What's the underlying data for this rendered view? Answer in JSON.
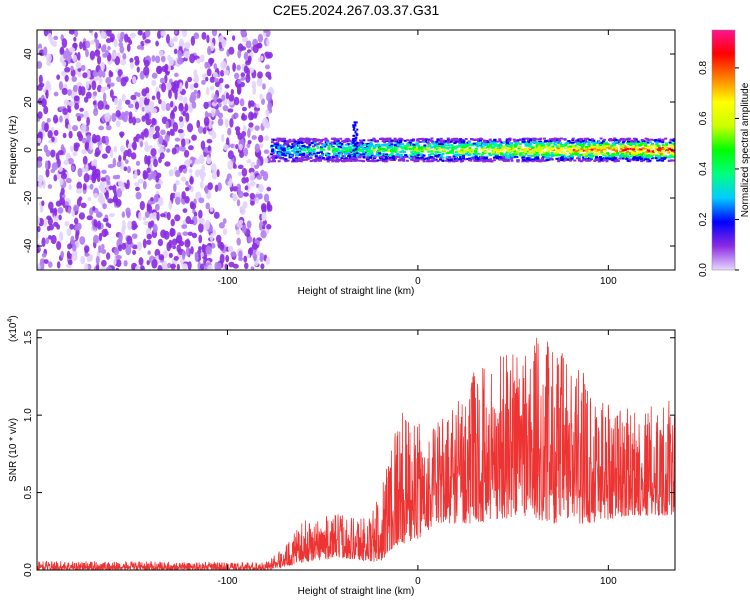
{
  "title": "C2E5.2024.267.03.37.G31",
  "chart_data": [
    {
      "type": "heatmap",
      "xlabel": "Height of straight line (km)",
      "ylabel": "Frequency (Hz)",
      "xlim": [
        -200,
        135
      ],
      "ylim": [
        -50,
        50
      ],
      "x_ticks": [
        -100,
        0,
        100
      ],
      "x_tick_labels": [
        "-100",
        "0",
        "100"
      ],
      "y_ticks": [
        -40,
        -20,
        0,
        20,
        40
      ],
      "y_tick_labels": [
        "-40",
        "-20",
        "0",
        "20",
        "40"
      ],
      "colorbar": {
        "label": "Normalized spectral amplitude",
        "range": [
          0,
          0.95
        ],
        "ticks": [
          0.0,
          0.2,
          0.4,
          0.6,
          0.8
        ],
        "tick_labels": [
          "0.0",
          "0.2",
          "0.4",
          "0.6",
          "0.8"
        ],
        "colors": [
          "#e8d8ff",
          "#8a2be2",
          "#0000ff",
          "#00ccff",
          "#00ff80",
          "#00ff00",
          "#ccff00",
          "#ffff00",
          "#ff8000",
          "#ff0000",
          "#ff1493"
        ]
      },
      "regions": [
        {
          "x_range": [
            -200,
            -77
          ],
          "freq_range": [
            -50,
            50
          ],
          "amplitude": 0.1
        },
        {
          "x_range": [
            -77,
            135
          ],
          "center_freq": 0,
          "half_width_hz": 3,
          "amplitude_range": [
            0.3,
            0.9
          ]
        },
        {
          "x_range": [
            -35,
            -32
          ],
          "freq_range": [
            0,
            12
          ],
          "amplitude": 0.15
        }
      ]
    },
    {
      "type": "line",
      "xlabel": "Height of straight line (km)",
      "ylabel": "SNR (10 * v/v)",
      "y_multiplier_label": "(x10",
      "y_multiplier_exp": "4",
      "xlim": [
        -200,
        135
      ],
      "ylim": [
        0,
        1.55
      ],
      "x_ticks": [
        -100,
        0,
        100
      ],
      "x_tick_labels": [
        "-100",
        "0",
        "100"
      ],
      "y_ticks": [
        0,
        0.5,
        1.0,
        1.5
      ],
      "y_tick_labels": [
        "0.0",
        "0.5",
        "1.0",
        "1.5"
      ],
      "series": [
        {
          "color": "#ee3333",
          "envelope": [
            {
              "x": -200,
              "low": 0.0,
              "high": 0.06
            },
            {
              "x": -80,
              "low": 0.0,
              "high": 0.05
            },
            {
              "x": -70,
              "low": 0.02,
              "high": 0.15
            },
            {
              "x": -60,
              "low": 0.05,
              "high": 0.32
            },
            {
              "x": -40,
              "low": 0.08,
              "high": 0.37
            },
            {
              "x": -25,
              "low": 0.05,
              "high": 0.35
            },
            {
              "x": -20,
              "low": 0.05,
              "high": 0.5
            },
            {
              "x": -12,
              "low": 0.15,
              "high": 1.05
            },
            {
              "x": 0,
              "low": 0.2,
              "high": 0.95
            },
            {
              "x": 10,
              "low": 0.3,
              "high": 0.95
            },
            {
              "x": 30,
              "low": 0.3,
              "high": 1.3
            },
            {
              "x": 55,
              "low": 0.35,
              "high": 1.55
            },
            {
              "x": 70,
              "low": 0.3,
              "high": 1.5
            },
            {
              "x": 90,
              "low": 0.3,
              "high": 1.25
            },
            {
              "x": 110,
              "low": 0.35,
              "high": 1.05
            },
            {
              "x": 135,
              "low": 0.35,
              "high": 1.1
            }
          ]
        }
      ]
    }
  ]
}
